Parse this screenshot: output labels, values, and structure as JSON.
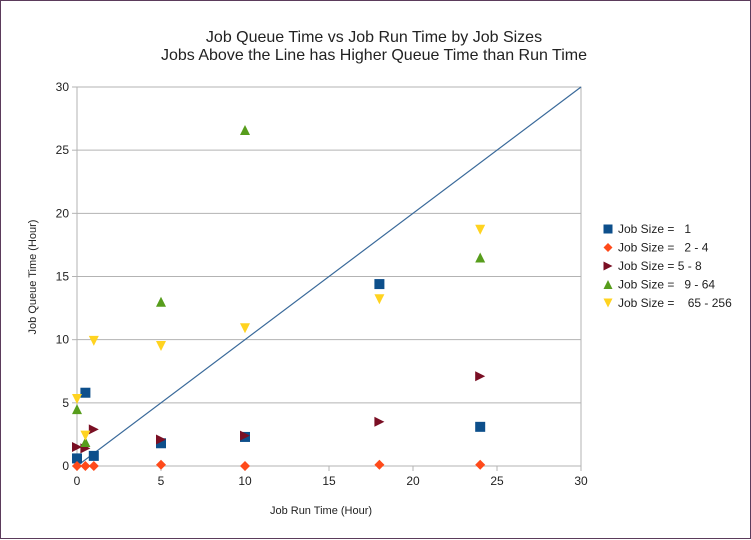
{
  "chart_data": {
    "type": "scatter",
    "title": "Job Queue Time vs Job Run Time by Job Sizes",
    "subtitle": "Jobs Above the Line has Higher Queue Time than Run Time",
    "xlabel": "Job Run Time (Hour)",
    "ylabel": "Job Queue Time (Hour)",
    "xlim": [
      0,
      30
    ],
    "ylim": [
      0,
      30
    ],
    "xticks": [
      0,
      5,
      10,
      15,
      20,
      25,
      30
    ],
    "yticks": [
      0,
      5,
      10,
      15,
      20,
      25,
      30
    ],
    "grid": "horizontal",
    "legend_position": "right",
    "reference_line": {
      "from": [
        0,
        0
      ],
      "to": [
        30,
        30
      ],
      "color": "#3a6a9a"
    },
    "series": [
      {
        "name": "Job Size =   1",
        "marker": "square",
        "color": "#0d4f8b",
        "points": [
          [
            0,
            0.6
          ],
          [
            0.5,
            5.8
          ],
          [
            1,
            0.8
          ],
          [
            5,
            1.8
          ],
          [
            10,
            2.3
          ],
          [
            18,
            14.4
          ],
          [
            24,
            3.1
          ]
        ]
      },
      {
        "name": "Job Size =   2 - 4",
        "marker": "diamond",
        "color": "#ff4a1a",
        "points": [
          [
            0,
            0
          ],
          [
            0.5,
            0
          ],
          [
            1,
            0
          ],
          [
            5,
            0.1
          ],
          [
            10,
            0
          ],
          [
            18,
            0.1
          ],
          [
            24,
            0.1
          ]
        ]
      },
      {
        "name": "Job Size = 5 - 8",
        "marker": "triangle-right",
        "color": "#7a0f24",
        "points": [
          [
            0,
            1.5
          ],
          [
            0.5,
            1.4
          ],
          [
            1,
            2.9
          ],
          [
            5,
            2.1
          ],
          [
            10,
            2.4
          ],
          [
            18,
            3.5
          ],
          [
            24,
            7.1
          ]
        ]
      },
      {
        "name": "Job Size =   9 - 64",
        "marker": "triangle-up",
        "color": "#579d1c",
        "points": [
          [
            0,
            4.5
          ],
          [
            0.5,
            1.9
          ],
          [
            5,
            13.0
          ],
          [
            10,
            26.6
          ],
          [
            24,
            16.5
          ]
        ]
      },
      {
        "name": "Job Size =    65 - 256",
        "marker": "triangle-down",
        "color": "#ffd320",
        "points": [
          [
            0,
            5.3
          ],
          [
            0.5,
            2.4
          ],
          [
            1,
            9.9
          ],
          [
            5,
            9.5
          ],
          [
            10,
            10.9
          ],
          [
            18,
            13.2
          ],
          [
            24,
            18.7
          ]
        ]
      }
    ]
  }
}
